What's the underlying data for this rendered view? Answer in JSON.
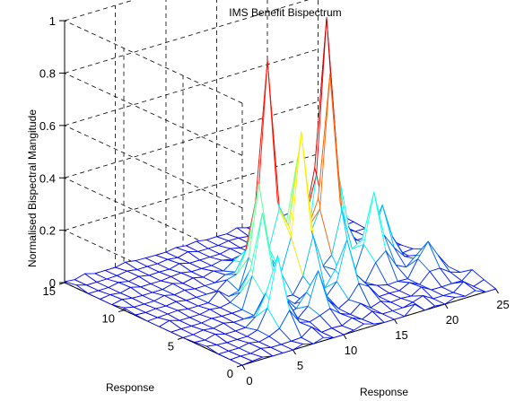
{
  "chart_data": {
    "type": "surface",
    "title": "IMS Benefit Bispectrum",
    "xlabel": "Response",
    "ylabel": "Response",
    "zlabel": "Normalised Bispectral Mangitude",
    "xlim": [
      0,
      25
    ],
    "ylim": [
      0,
      15
    ],
    "zlim": [
      0,
      1
    ],
    "xticks": [
      0,
      5,
      10,
      15,
      20,
      25
    ],
    "yticks": [
      0,
      5,
      10,
      15
    ],
    "zticks": [
      0,
      0.2,
      0.4,
      0.6,
      0.8,
      1
    ],
    "xtick_labels": [
      "0",
      "5",
      "10",
      "15",
      "20",
      "25"
    ],
    "ytick_labels": [
      "0",
      "5",
      "10",
      "15"
    ],
    "ztick_labels": [
      "0",
      "0.2",
      "0.4",
      "0.6",
      "0.8",
      "1"
    ],
    "grid": true,
    "colormap": "jet",
    "grid_size": [
      26,
      16
    ],
    "peaks": [
      {
        "x": 7,
        "y": 3,
        "z": 0.26
      },
      {
        "x": 9,
        "y": 6,
        "z": 0.35
      },
      {
        "x": 11,
        "y": 8,
        "z": 0.39
      },
      {
        "x": 13,
        "y": 9,
        "z": 0.8
      },
      {
        "x": 14,
        "y": 7,
        "z": 0.58
      },
      {
        "x": 16,
        "y": 9,
        "z": 0.42
      },
      {
        "x": 18,
        "y": 8,
        "z": 0.7
      },
      {
        "x": 20,
        "y": 10,
        "z": 0.88
      },
      {
        "x": 20,
        "y": 6,
        "z": 0.3
      },
      {
        "x": 22,
        "y": 7,
        "z": 0.2
      },
      {
        "x": 15,
        "y": 4,
        "z": 0.22
      },
      {
        "x": 23,
        "y": 4,
        "z": 0.12
      },
      {
        "x": 11,
        "y": 3,
        "z": 0.14
      }
    ]
  }
}
